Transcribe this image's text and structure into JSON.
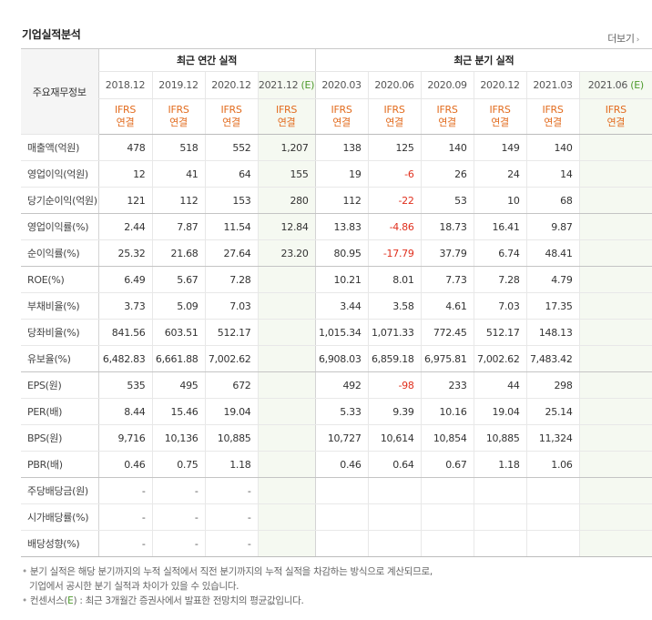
{
  "section_title": "기업실적분석",
  "more_label": "더보기",
  "label_header": "주요재무정보",
  "groups": {
    "annual": "최근 연간 실적",
    "quarter": "최근 분기 실적"
  },
  "periods": [
    {
      "label": "2018.12",
      "estimate": false
    },
    {
      "label": "2019.12",
      "estimate": false
    },
    {
      "label": "2020.12",
      "estimate": false
    },
    {
      "label": "2021.12",
      "estimate": true
    },
    {
      "label": "2020.03",
      "estimate": false
    },
    {
      "label": "2020.06",
      "estimate": false
    },
    {
      "label": "2020.09",
      "estimate": false
    },
    {
      "label": "2020.12",
      "estimate": false
    },
    {
      "label": "2021.03",
      "estimate": false
    },
    {
      "label": "2021.06",
      "estimate": true
    }
  ],
  "estimate_mark": "(E)",
  "ifrs_label": "IFRS",
  "consol_label": "연결",
  "rows": [
    {
      "label": "매출액(억원)",
      "values": [
        "478",
        "518",
        "552",
        "1,207",
        "138",
        "125",
        "140",
        "149",
        "140",
        ""
      ]
    },
    {
      "label": "영업이익(억원)",
      "values": [
        "12",
        "41",
        "64",
        "155",
        "19",
        "-6",
        "26",
        "24",
        "14",
        ""
      ]
    },
    {
      "label": "당기순이익(억원)",
      "values": [
        "121",
        "112",
        "153",
        "280",
        "112",
        "-22",
        "53",
        "10",
        "68",
        ""
      ]
    },
    {
      "label": "영업이익률(%)",
      "values": [
        "2.44",
        "7.87",
        "11.54",
        "12.84",
        "13.83",
        "-4.86",
        "18.73",
        "16.41",
        "9.87",
        ""
      ]
    },
    {
      "label": "순이익률(%)",
      "values": [
        "25.32",
        "21.68",
        "27.64",
        "23.20",
        "80.95",
        "-17.79",
        "37.79",
        "6.74",
        "48.41",
        ""
      ]
    },
    {
      "label": "ROE(%)",
      "values": [
        "6.49",
        "5.67",
        "7.28",
        "",
        "10.21",
        "8.01",
        "7.73",
        "7.28",
        "4.79",
        ""
      ]
    },
    {
      "label": "부채비율(%)",
      "values": [
        "3.73",
        "5.09",
        "7.03",
        "",
        "3.44",
        "3.58",
        "4.61",
        "7.03",
        "17.35",
        ""
      ]
    },
    {
      "label": "당좌비율(%)",
      "values": [
        "841.56",
        "603.51",
        "512.17",
        "",
        "1,015.34",
        "1,071.33",
        "772.45",
        "512.17",
        "148.13",
        ""
      ]
    },
    {
      "label": "유보율(%)",
      "values": [
        "6,482.83",
        "6,661.88",
        "7,002.62",
        "",
        "6,908.03",
        "6,859.18",
        "6,975.81",
        "7,002.62",
        "7,483.42",
        ""
      ]
    },
    {
      "label": "EPS(원)",
      "values": [
        "535",
        "495",
        "672",
        "",
        "492",
        "-98",
        "233",
        "44",
        "298",
        ""
      ]
    },
    {
      "label": "PER(배)",
      "values": [
        "8.44",
        "15.46",
        "19.04",
        "",
        "5.33",
        "9.39",
        "10.16",
        "19.04",
        "25.14",
        ""
      ]
    },
    {
      "label": "BPS(원)",
      "values": [
        "9,716",
        "10,136",
        "10,885",
        "",
        "10,727",
        "10,614",
        "10,854",
        "10,885",
        "11,324",
        ""
      ]
    },
    {
      "label": "PBR(배)",
      "values": [
        "0.46",
        "0.75",
        "1.18",
        "",
        "0.46",
        "0.64",
        "0.67",
        "1.18",
        "1.06",
        ""
      ]
    },
    {
      "label": "주당배당금(원)",
      "values": [
        "-",
        "-",
        "-",
        "",
        "",
        "",
        "",
        "",
        "",
        ""
      ]
    },
    {
      "label": "시가배당률(%)",
      "values": [
        "-",
        "-",
        "-",
        "",
        "",
        "",
        "",
        "",
        "",
        ""
      ]
    },
    {
      "label": "배당성향(%)",
      "values": [
        "-",
        "-",
        "-",
        "",
        "",
        "",
        "",
        "",
        "",
        ""
      ]
    }
  ],
  "notes": {
    "line1": "분기 실적은 해당 분기까지의 누적 실적에서 직전 분기까지의 누적 실적을 차감하는 방식으로 계산되므로,",
    "line2": "기업에서 공시한 분기 실적과 차이가 있을 수 있습니다.",
    "line3_prefix": "컨센서스(",
    "line3_e": "E",
    "line3_suffix": ") : 최근 3개월간 증권사에서 발표한 전망치의 평균값입니다."
  }
}
